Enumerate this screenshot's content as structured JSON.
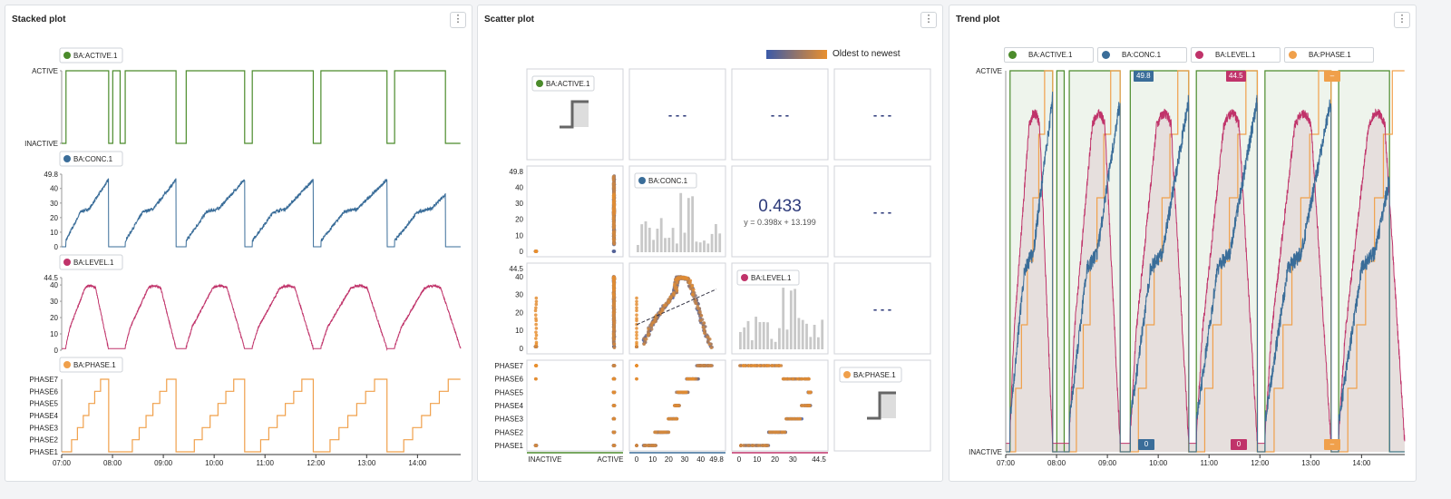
{
  "panels": {
    "stacked": {
      "title": "Stacked plot",
      "menu_icon": "⋮"
    },
    "scatter": {
      "title": "Scatter plot",
      "menu_icon": "⋮",
      "gradient_label": "Oldest to newest"
    },
    "trend": {
      "title": "Trend plot",
      "menu_icon": "⋮"
    }
  },
  "series": [
    {
      "name": "BA:ACTIVE.1",
      "color": "#4b8b2b"
    },
    {
      "name": "BA:CONC.1",
      "color": "#3a6d99"
    },
    {
      "name": "BA:LEVEL.1",
      "color": "#c0336a"
    },
    {
      "name": "BA:PHASE.1",
      "color": "#f0a04b"
    }
  ],
  "time_axis": [
    "07:00",
    "08:00",
    "09:00",
    "10:00",
    "11:00",
    "12:00",
    "13:00",
    "14:00"
  ],
  "stacked_axes": {
    "active": [
      "ACTIVE",
      "INACTIVE"
    ],
    "conc": [
      "49.8",
      "40",
      "30",
      "20",
      "10",
      "0"
    ],
    "level": [
      "44.5",
      "40",
      "30",
      "20",
      "10",
      "0"
    ],
    "phase": [
      "PHASE7",
      "PHASE6",
      "PHASE5",
      "PHASE4",
      "PHASE3",
      "PHASE2",
      "PHASE1"
    ]
  },
  "scatter": {
    "correlation": "0.433",
    "regression": "y = 0.398x + 13.199",
    "placeholder": "- - -",
    "x_axis_active": [
      "INACTIVE",
      "ACTIVE"
    ],
    "x_axis_conc": [
      "0",
      "10",
      "20",
      "30",
      "40",
      "49.8"
    ],
    "x_axis_level": [
      "0",
      "10",
      "20",
      "30",
      "44.5"
    ],
    "y_axis_conc": [
      "49.8",
      "40",
      "30",
      "20",
      "10",
      "0"
    ],
    "y_axis_level": [
      "44.5",
      "40",
      "30",
      "20",
      "10",
      "0"
    ],
    "y_axis_phase": [
      "PHASE7",
      "PHASE6",
      "PHASE5",
      "PHASE4",
      "PHASE3",
      "PHASE2",
      "PHASE1"
    ]
  },
  "trend": {
    "y_top": "ACTIVE",
    "y_bottom": "INACTIVE",
    "badges_top": [
      {
        "text": "49.8",
        "color": "#3a6d99"
      },
      {
        "text": "44.5",
        "color": "#c0336a"
      },
      {
        "text": "–",
        "color": "#f0a04b"
      }
    ],
    "badges_bottom": [
      {
        "text": "0",
        "color": "#3a6d99"
      },
      {
        "text": "0",
        "color": "#c0336a"
      },
      {
        "text": "–",
        "color": "#f0a04b"
      }
    ]
  }
}
